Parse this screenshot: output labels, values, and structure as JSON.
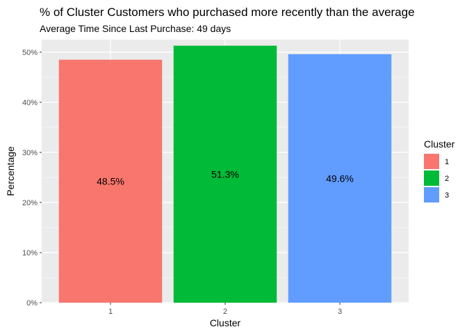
{
  "chart_data": {
    "type": "bar",
    "title": "% of Cluster Customers who purchased more recently than the average",
    "subtitle": "Average Time Since Last Purchase: 49 days",
    "xlabel": "Cluster",
    "ylabel": "Percentage",
    "categories": [
      "1",
      "2",
      "3"
    ],
    "values": [
      48.5,
      51.3,
      49.6
    ],
    "data_labels": [
      "48.5%",
      "51.3%",
      "49.6%"
    ],
    "colors": [
      "#F8766D",
      "#00BA38",
      "#619CFF"
    ],
    "ylim": [
      0,
      52.5
    ],
    "y_ticks": [
      0,
      10,
      20,
      30,
      40,
      50
    ],
    "y_tick_labels": [
      "0%",
      "10%",
      "20%",
      "30%",
      "40%",
      "50%"
    ],
    "grid": true,
    "panel_background": "#EBEBEB",
    "legend": {
      "title": "Cluster",
      "placement": "right",
      "entries": [
        "1",
        "2",
        "3"
      ]
    }
  }
}
